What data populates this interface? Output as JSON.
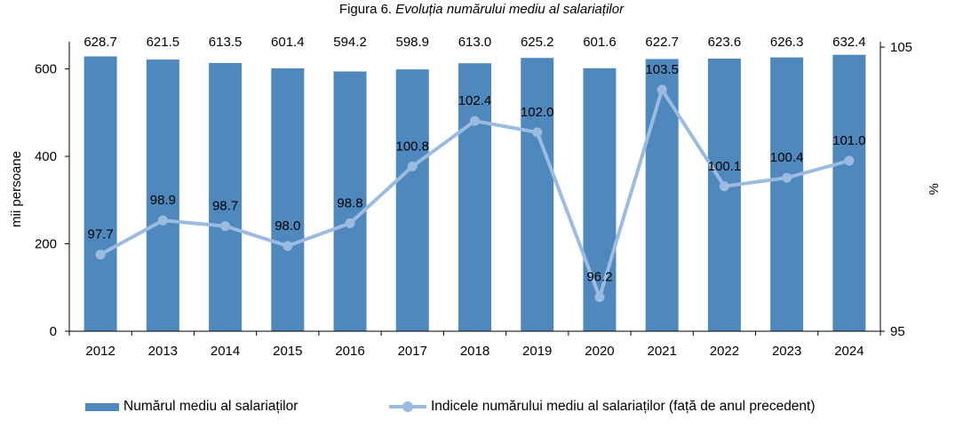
{
  "figure": {
    "label": "Figura 6.",
    "title": "Evoluția numărului mediu al salariaților"
  },
  "colors": {
    "bar": "#4f88bd",
    "line": "#9bbbe0",
    "axis": "#000000"
  },
  "legend": {
    "bar_label": "Numărul mediu al salariaților",
    "line_label": "Indicele numărului mediu al salariaților (față de anul precedent)"
  },
  "chart_data": {
    "type": "bar",
    "categories": [
      "2012",
      "2013",
      "2014",
      "2015",
      "2016",
      "2017",
      "2018",
      "2019",
      "2020",
      "2021",
      "2022",
      "2023",
      "2024"
    ],
    "series": [
      {
        "name": "Numărul mediu al salariaților",
        "type": "bar",
        "axis": "left",
        "values": [
          628.7,
          621.5,
          613.5,
          601.4,
          594.2,
          598.9,
          613.0,
          625.2,
          601.6,
          622.7,
          623.6,
          626.3,
          632.4
        ]
      },
      {
        "name": "Indicele numărului mediu al salariaților (față de anul precedent)",
        "type": "line",
        "axis": "right",
        "values": [
          97.7,
          98.9,
          98.7,
          98.0,
          98.8,
          100.8,
          102.4,
          102.0,
          96.2,
          103.5,
          100.1,
          100.4,
          101.0
        ]
      }
    ],
    "left_axis": {
      "label": "mii persoane",
      "min": 0,
      "max": 650,
      "ticks": [
        0,
        200,
        400,
        600
      ]
    },
    "right_axis": {
      "label": "%",
      "min": 95,
      "max": 105,
      "ticks": [
        95,
        105
      ]
    },
    "grid": false,
    "legend_position": "bottom"
  }
}
